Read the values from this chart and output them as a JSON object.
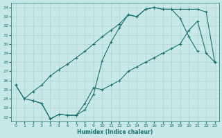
{
  "xlabel": "Humidex (Indice chaleur)",
  "background_color": "#c8e8e8",
  "grid_color": "#b0d4d4",
  "line_color": "#1a7070",
  "line1": {
    "x": [
      0,
      1,
      2,
      3,
      4,
      5,
      6,
      7,
      8,
      9,
      10,
      11,
      12,
      13,
      14,
      15,
      16,
      17,
      18,
      19,
      20,
      21,
      22,
      23
    ],
    "y": [
      25.5,
      24.0,
      24.8,
      25.5,
      26.5,
      27.2,
      27.8,
      28.5,
      29.2,
      30.0,
      30.8,
      31.5,
      32.2,
      33.2,
      33.0,
      33.8,
      34.0,
      33.8,
      33.8,
      33.8,
      33.8,
      33.8,
      33.5,
      28.0
    ]
  },
  "line2": {
    "x": [
      0,
      1,
      2,
      3,
      4,
      5,
      6,
      7,
      8,
      9,
      10,
      11,
      12,
      13,
      14,
      15,
      16,
      17,
      18,
      19,
      20,
      21,
      22,
      23
    ],
    "y": [
      25.5,
      24.0,
      23.8,
      23.5,
      21.8,
      22.3,
      22.2,
      22.2,
      22.8,
      24.5,
      28.2,
      30.2,
      31.8,
      33.2,
      33.0,
      33.8,
      34.0,
      33.8,
      33.8,
      32.8,
      30.8,
      29.2,
      null,
      null
    ]
  },
  "line3": {
    "x": [
      0,
      1,
      2,
      3,
      4,
      5,
      6,
      7,
      8,
      9,
      10,
      11,
      12,
      13,
      14,
      15,
      16,
      17,
      18,
      19,
      20,
      21,
      22,
      23
    ],
    "y": [
      null,
      null,
      23.8,
      23.5,
      21.8,
      22.3,
      22.2,
      22.2,
      23.5,
      25.2,
      25.0,
      25.5,
      26.0,
      27.0,
      27.5,
      28.0,
      28.5,
      29.0,
      29.5,
      30.0,
      31.5,
      32.5,
      29.0,
      28.0
    ]
  },
  "ylim": [
    21.5,
    34.5
  ],
  "xlim": [
    -0.5,
    23.5
  ],
  "yticks": [
    22,
    23,
    24,
    25,
    26,
    27,
    28,
    29,
    30,
    31,
    32,
    33,
    34
  ],
  "xticks": [
    0,
    1,
    2,
    3,
    4,
    5,
    6,
    7,
    8,
    9,
    10,
    11,
    12,
    13,
    14,
    15,
    16,
    17,
    18,
    19,
    20,
    21,
    22,
    23
  ]
}
